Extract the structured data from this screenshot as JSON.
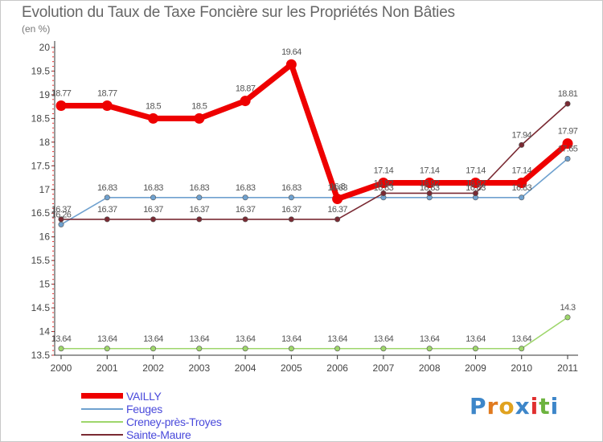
{
  "chart_data": {
    "type": "line",
    "title": "Evolution du Taux de Taxe Foncière sur les Propriétés Non Bâties",
    "subtitle": "(en %)",
    "x": [
      "2000",
      "2001",
      "2002",
      "2003",
      "2004",
      "2005",
      "2006",
      "2007",
      "2008",
      "2009",
      "2010",
      "2011"
    ],
    "ylim": [
      13.5,
      20
    ],
    "yticks": [
      "13.5",
      "14",
      "14.5",
      "15",
      "15.5",
      "16",
      "16.5",
      "17",
      "17.5",
      "18",
      "18.5",
      "19",
      "19.5",
      "20"
    ],
    "grid": false,
    "series": [
      {
        "name": "VAILLY",
        "color": "#ee0000",
        "values": [
          18.77,
          18.77,
          18.5,
          18.5,
          18.87,
          19.64,
          16.8,
          17.14,
          17.14,
          17.14,
          17.14,
          17.97
        ],
        "labels": [
          "18.77",
          "18.77",
          "18.5",
          "18.5",
          "18.87",
          "19.64",
          "16.8",
          "17.14",
          "17.14",
          "17.14",
          "17.14",
          "17.97"
        ]
      },
      {
        "name": "Feuges",
        "color": "#6fa1cf",
        "values": [
          16.26,
          16.83,
          16.83,
          16.83,
          16.83,
          16.83,
          16.83,
          16.83,
          16.83,
          16.83,
          16.83,
          17.65
        ],
        "labels": [
          "16.26",
          "16.83",
          "16.83",
          "16.83",
          "16.83",
          "16.83",
          "16.83",
          "16.83",
          "16.83",
          "16.83",
          "16.83",
          "17.65"
        ]
      },
      {
        "name": "Creney-près-Troyes",
        "color": "#9ed66b",
        "values": [
          13.64,
          13.64,
          13.64,
          13.64,
          13.64,
          13.64,
          13.64,
          13.64,
          13.64,
          13.64,
          13.64,
          14.3
        ],
        "labels": [
          "13.64",
          "13.64",
          "13.64",
          "13.64",
          "13.64",
          "13.64",
          "13.64",
          "13.64",
          "13.64",
          "13.64",
          "13.64",
          "14.3"
        ]
      },
      {
        "name": "Sainte-Maure",
        "color": "#7a2a33",
        "values": [
          16.37,
          16.37,
          16.37,
          16.37,
          16.37,
          16.37,
          16.37,
          16.92,
          16.92,
          16.92,
          17.94,
          18.81
        ],
        "labels": [
          "16.37",
          "16.37",
          "16.37",
          "16.37",
          "16.37",
          "16.37",
          "16.37",
          "16.92",
          "16.92",
          "16.92",
          "17.94",
          "18.81"
        ]
      }
    ]
  },
  "legend": {
    "items": [
      "VAILLY",
      "Feuges",
      "Creney-près-Troyes",
      "Sainte-Maure"
    ]
  },
  "logo": {
    "text": "Proxiti",
    "letters": [
      "P",
      "r",
      "o",
      "x",
      "i",
      "t",
      "i"
    ],
    "colors": [
      "#3d86c9",
      "#e07a1f",
      "#e0a21f",
      "#3d86c9",
      "#e02f2f",
      "#6db33f",
      "#3d86c9"
    ]
  }
}
